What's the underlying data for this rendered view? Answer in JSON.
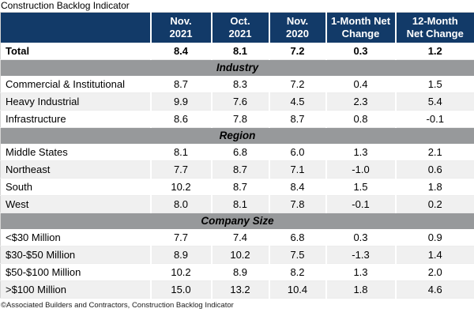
{
  "title": "Construction Backlog Indicator",
  "footer": "©Associated Builders and Contractors, Construction Backlog Indicator",
  "colors": {
    "header_bg": "#123A68",
    "header_text": "#FFFFFF",
    "band_bg": "#97999B",
    "band_text": "#000000",
    "row_bg": "#FFFFFF",
    "row_alt_bg": "#F0F0F0",
    "body_text": "#000000",
    "footer_text": "#1A1A1A",
    "grid_line": "#ECECEC",
    "outer_border": "#D5D5D5"
  },
  "chart_data": {
    "type": "table",
    "title": "Construction Backlog Indicator",
    "columns": [
      "Nov.\n2021",
      "Oct.\n2021",
      "Nov.\n2020",
      "1-Month Net\nChange",
      "12-Month\nNet Change"
    ],
    "sections": [
      {
        "header": null,
        "rows": [
          {
            "label": "Total",
            "values": [
              8.4,
              8.1,
              7.2,
              0.3,
              1.2
            ],
            "bold": true
          }
        ]
      },
      {
        "header": "Industry",
        "rows": [
          {
            "label": "Commercial & Institutional",
            "values": [
              8.7,
              8.3,
              7.2,
              0.4,
              1.5
            ]
          },
          {
            "label": "Heavy Industrial",
            "values": [
              9.9,
              7.6,
              4.5,
              2.3,
              5.4
            ]
          },
          {
            "label": "Infrastructure",
            "values": [
              8.6,
              7.8,
              8.7,
              0.8,
              -0.1
            ]
          }
        ]
      },
      {
        "header": "Region",
        "rows": [
          {
            "label": "Middle States",
            "values": [
              8.1,
              6.8,
              6.0,
              1.3,
              2.1
            ]
          },
          {
            "label": "Northeast",
            "values": [
              7.7,
              8.7,
              7.1,
              -1.0,
              0.6
            ]
          },
          {
            "label": "South",
            "values": [
              10.2,
              8.7,
              8.4,
              1.5,
              1.8
            ]
          },
          {
            "label": "West",
            "values": [
              8.0,
              8.1,
              7.8,
              -0.1,
              0.2
            ]
          }
        ]
      },
      {
        "header": "Company Size",
        "rows": [
          {
            "label": "<$30 Million",
            "values": [
              7.7,
              7.4,
              6.8,
              0.3,
              0.9
            ]
          },
          {
            "label": "$30-$50 Million",
            "values": [
              8.9,
              10.2,
              7.5,
              -1.3,
              1.4
            ]
          },
          {
            "label": "$50-$100 Million",
            "values": [
              10.2,
              8.9,
              8.2,
              1.3,
              2.0
            ]
          },
          {
            "label": ">$100 Million",
            "values": [
              15.0,
              13.2,
              10.4,
              1.8,
              4.6
            ]
          }
        ]
      }
    ]
  }
}
